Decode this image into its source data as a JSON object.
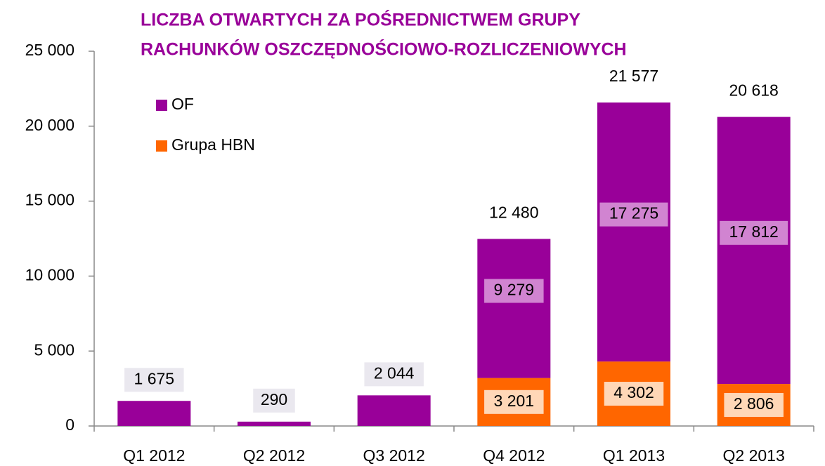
{
  "chart_data": {
    "type": "stacked_bar",
    "title": [
      "LICZBA OTWARTYCH ZA POŚREDNICTWEM GRUPY",
      "RACHUNKÓW OSZCZĘDNOŚCIOWO-ROZLICZENIOWYCH"
    ],
    "categories": [
      "Q1 2012",
      "Q2 2012",
      "Q3 2012",
      "Q4 2012",
      "Q1 2013",
      "Q2 2013"
    ],
    "series": [
      {
        "name": "Grupa HBN",
        "color": "#ff6600",
        "values": [
          null,
          null,
          null,
          3201,
          4302,
          2806
        ],
        "value_labels": [
          null,
          null,
          null,
          "3 201",
          "4 302",
          "2 806"
        ]
      },
      {
        "name": "OF",
        "color": "#990099",
        "values": [
          1675,
          290,
          2044,
          9279,
          17275,
          17812
        ],
        "value_labels": [
          "1 675",
          "290",
          "2 044",
          "9 279",
          "17 275",
          "17 812"
        ]
      }
    ],
    "totals": [
      null,
      null,
      null,
      12480,
      21577,
      20618
    ],
    "total_labels": [
      null,
      null,
      null,
      "12 480",
      "21 577",
      "20 618"
    ],
    "ylim": [
      0,
      25000
    ],
    "yticks": [
      0,
      {
        "value": 5000,
        "label": "5 000"
      },
      {
        "value": 10000,
        "label": "10 000"
      },
      {
        "value": 15000,
        "label": "15 000"
      },
      {
        "value": 20000,
        "label": "20 000"
      },
      {
        "value": 25000,
        "label": "25 000"
      }
    ],
    "legend": "top-left"
  }
}
